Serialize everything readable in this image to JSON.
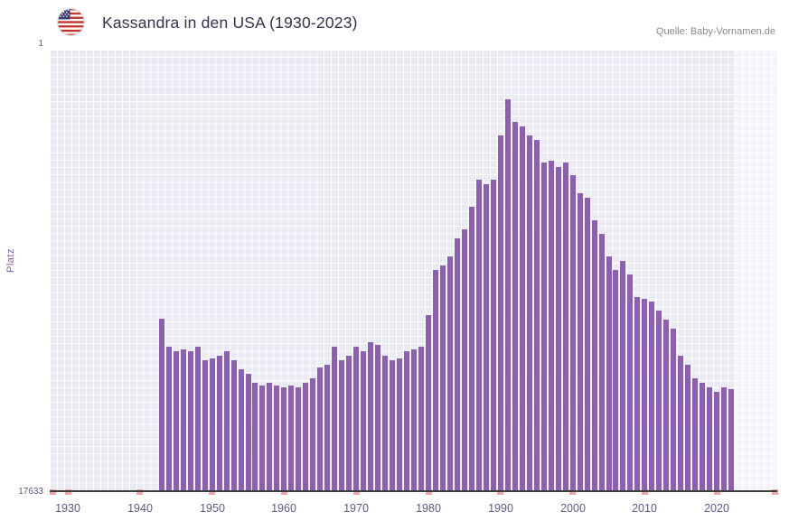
{
  "colors": {
    "bar": "#8c5fb5",
    "plot_bg": "#eaeaf2",
    "grid": "#ffffff",
    "axis": "#3b3b3b",
    "tick": "#f2a5a5",
    "title": "#323250",
    "source": "#8a8a8a",
    "axis_label": "#5e5a8c",
    "ylabel": "#7e57b0"
  },
  "chart_data": {
    "type": "bar",
    "title": "Kassandra in den USA (1930-2023)",
    "source": "Quelle: Baby-Vornamen.de",
    "xlabel": "",
    "ylabel": "Platz",
    "legend": "none",
    "grid": true,
    "y_axis": {
      "top_label": "1",
      "bottom_label": "17633",
      "min": 1,
      "max": 17633,
      "inverted": true,
      "note": "rank 1 at top, taller bar = better rank"
    },
    "x_range": [
      1930,
      2023
    ],
    "x_ticks": [
      1930,
      1940,
      1950,
      1960,
      1970,
      1980,
      1990,
      2000,
      2010,
      2020
    ],
    "series_name": "Platz",
    "years": [
      1943,
      1944,
      1945,
      1946,
      1947,
      1948,
      1949,
      1950,
      1951,
      1952,
      1953,
      1954,
      1955,
      1956,
      1957,
      1958,
      1959,
      1960,
      1961,
      1962,
      1963,
      1964,
      1965,
      1966,
      1967,
      1968,
      1969,
      1970,
      1971,
      1972,
      1973,
      1974,
      1975,
      1976,
      1977,
      1978,
      1979,
      1980,
      1981,
      1982,
      1983,
      1984,
      1985,
      1986,
      1987,
      1988,
      1989,
      1990,
      1991,
      1992,
      1993,
      1994,
      1995,
      1996,
      1997,
      1998,
      1999,
      2000,
      2001,
      2002,
      2003,
      2004,
      2005,
      2006,
      2007,
      2008,
      2009,
      2010,
      2011,
      2012,
      2013,
      2014,
      2015,
      2016,
      2017,
      2018,
      2019,
      2020,
      2021,
      2022
    ],
    "values": [
      10760,
      11880,
      12060,
      11990,
      12060,
      11880,
      12420,
      12340,
      12240,
      12060,
      12420,
      12780,
      12960,
      13320,
      13430,
      13320,
      13430,
      13500,
      13430,
      13500,
      13320,
      13140,
      12710,
      12600,
      11880,
      12420,
      12240,
      11880,
      12060,
      11700,
      11800,
      12240,
      12420,
      12340,
      12060,
      11990,
      11880,
      10620,
      8820,
      8640,
      8280,
      7560,
      7200,
      6300,
      5220,
      5400,
      5220,
      3420,
      1980,
      2880,
      3060,
      3420,
      3600,
      4500,
      4430,
      4680,
      4500,
      5040,
      5760,
      5940,
      6840,
      7380,
      8280,
      8820,
      8460,
      9000,
      9900,
      9970,
      10080,
      10440,
      10800,
      11160,
      12240,
      12600,
      13140,
      13320,
      13500,
      13680,
      13500,
      13580
    ]
  }
}
